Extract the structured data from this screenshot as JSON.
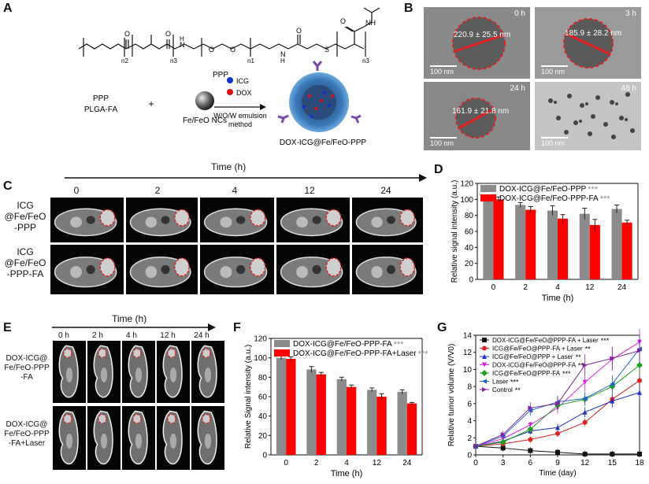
{
  "panels": {
    "A": {
      "label": "A",
      "polymer_name": "PPP",
      "subscripts": [
        "n2",
        "n3",
        "n1",
        "n3"
      ],
      "reagent_left": "PPP",
      "reagent_left2": "PLGA-FA",
      "plus": "+",
      "nc_label": "Fe/FeO NCs",
      "legend_icg": "ICG",
      "legend_dox": "DOX",
      "method_line1": "W/O/W emulsion",
      "method_line2": "method",
      "product": "DOX-ICG@Fe/FeO-PPP"
    },
    "B": {
      "label": "B",
      "images": [
        {
          "time": "0 h",
          "size": "220.9 ± 25.5 nm",
          "scale": "100 nm"
        },
        {
          "time": "3 h",
          "size": "185.9 ± 28.2 nm",
          "scale": "100 nm"
        },
        {
          "time": "24 h",
          "size": "161.9 ± 21.8 nm",
          "scale": "100 nm"
        },
        {
          "time": "48 h",
          "size": "",
          "scale": "100 nm"
        }
      ]
    },
    "C": {
      "label": "C",
      "time_title": "Time (h)",
      "times": [
        "0",
        "2",
        "4",
        "12",
        "24"
      ],
      "row1": [
        "ICG",
        "@Fe/FeO",
        "-PPP"
      ],
      "row2": [
        "ICG",
        "@Fe/FeO",
        "-PPP-FA"
      ]
    },
    "E": {
      "label": "E",
      "time_title": "Time (h)",
      "times": [
        "0 h",
        "2 h",
        "4 h",
        "12 h",
        "24 h"
      ],
      "row1": [
        "DOX-ICG@",
        "Fe/FeO-PPP",
        "-FA"
      ],
      "row2": [
        "DOX-ICG@",
        "Fe/FeO-PPP",
        "-FA+Laser"
      ]
    }
  },
  "chart_data": [
    {
      "id": "D",
      "label": "D",
      "type": "bar",
      "ylabel": "Relative signal intensity (a.u.)",
      "xlabel": "Time (h)",
      "categories": [
        "0",
        "2",
        "4",
        "12",
        "24"
      ],
      "ylim": [
        0,
        120
      ],
      "yticks": [
        "0",
        "20",
        "40",
        "60",
        "80",
        "100",
        "120"
      ],
      "series": [
        {
          "name": "DOX-ICG@Fe/FeO-PPP",
          "sig": "***",
          "color": "#8c8c8c",
          "values": [
            100,
            93,
            86,
            82,
            88
          ],
          "errors": [
            3,
            3,
            6,
            7,
            5
          ]
        },
        {
          "name": "DOX-ICG@Fe/FeO-PPP-FA",
          "sig": "***",
          "color": "#ff0000",
          "values": [
            100,
            87,
            76,
            68,
            71
          ],
          "errors": [
            3,
            4,
            5,
            7,
            3
          ]
        }
      ]
    },
    {
      "id": "F",
      "label": "F",
      "type": "bar",
      "ylabel": "Relative Signal intensity (a.u.)",
      "xlabel": "Time (h)",
      "categories": [
        "0",
        "2",
        "4",
        "12",
        "24"
      ],
      "ylim": [
        0,
        120
      ],
      "yticks": [
        "0",
        "20",
        "40",
        "60",
        "80",
        "100",
        "120"
      ],
      "series": [
        {
          "name": "DOX-ICG@Fe/FeO-PPP-FA",
          "sig": "***",
          "color": "#8c8c8c",
          "values": [
            100,
            88,
            78,
            67,
            65
          ],
          "errors": [
            2,
            3,
            2,
            2,
            2
          ]
        },
        {
          "name": "DOX-ICG@Fe/FeO-PPP-FA+Laser",
          "sig": "***",
          "color": "#ff0000",
          "values": [
            99,
            83,
            70,
            60,
            53
          ],
          "errors": [
            2,
            2,
            2,
            3,
            1
          ]
        }
      ]
    },
    {
      "id": "G",
      "label": "G",
      "type": "line",
      "ylabel": "Relative tumor volume (V/V0)",
      "xlabel": "Time (day)",
      "x": [
        0,
        3,
        6,
        9,
        12,
        15,
        18
      ],
      "xticks": [
        "0",
        "3",
        "6",
        "9",
        "12",
        "15",
        "18"
      ],
      "ylim": [
        0,
        14
      ],
      "yticks": [
        "0",
        "2",
        "4",
        "6",
        "8",
        "10",
        "12",
        "14"
      ],
      "series": [
        {
          "name": "DOX-ICG@Fe/FeO@PPP-FA + Laser",
          "sig": "***",
          "color": "#111111",
          "marker": "square",
          "values": [
            1,
            0.8,
            0.5,
            0.3,
            0.1,
            0.1,
            0.1
          ]
        },
        {
          "name": "ICG@Fe/FeO@PPP-FA + Laser",
          "sig": "**",
          "color": "#e02020",
          "marker": "circle",
          "values": [
            1,
            1.3,
            1.8,
            2.5,
            3.8,
            6.5,
            8.7
          ]
        },
        {
          "name": "ICG@Fe/FeO@PPP + Laser",
          "sig": "**",
          "color": "#2030c0",
          "marker": "triangle",
          "values": [
            1,
            1.6,
            2.8,
            3.2,
            5.0,
            6.3,
            7.3
          ]
        },
        {
          "name": "DOX-ICG@Fe/FeO@PPP-FA",
          "sig": "**",
          "color": "#e020e0",
          "marker": "triangle-down",
          "values": [
            1,
            1.9,
            3.5,
            5.5,
            8.5,
            11.2,
            13.2
          ]
        },
        {
          "name": "ICG@Fe/FeO@PPP-FA",
          "sig": "***",
          "color": "#20a020",
          "marker": "diamond",
          "values": [
            1,
            1.5,
            3.0,
            5.8,
            6.5,
            8.0,
            10.5
          ]
        },
        {
          "name": "Laser",
          "sig": "***",
          "color": "#2060d0",
          "marker": "triangle-left",
          "values": [
            1,
            2.2,
            5.2,
            6.2,
            6.6,
            8.3,
            12.4
          ]
        },
        {
          "name": "Control",
          "sig": "**",
          "color": "#8020a0",
          "marker": "triangle-right",
          "values": [
            1,
            2.4,
            5.5,
            6.0,
            10.5,
            11.3,
            12.2
          ]
        }
      ]
    }
  ]
}
